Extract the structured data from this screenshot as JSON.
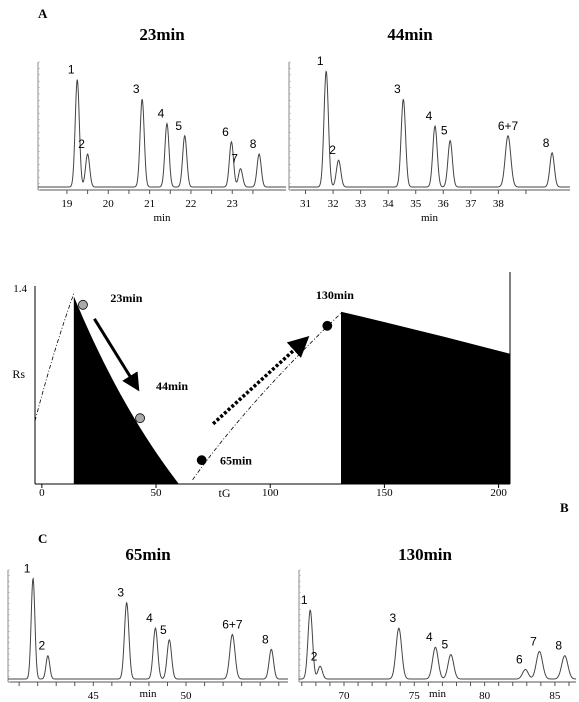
{
  "panels": {
    "A": "A",
    "B": "B",
    "C": "C"
  },
  "chart_data": [
    {
      "type": "line",
      "id": "chrom-23",
      "title": "23min",
      "xlabel": "min",
      "xlim": [
        18.3,
        24.3
      ],
      "xticks": [
        19,
        19.5,
        20,
        20.5,
        21,
        21.5,
        22,
        22.5,
        23,
        23.5
      ],
      "xtick_labels": [
        "19",
        "",
        "20",
        "",
        "21",
        "",
        "22",
        "",
        "23",
        ""
      ],
      "peaks": [
        {
          "label": "1",
          "x": 19.25,
          "height": 0.88,
          "width": 0.05
        },
        {
          "label": "2",
          "x": 19.5,
          "height": 0.27,
          "width": 0.05
        },
        {
          "label": "3",
          "x": 20.82,
          "height": 0.72,
          "width": 0.05
        },
        {
          "label": "4",
          "x": 21.42,
          "height": 0.52,
          "width": 0.05
        },
        {
          "label": "5",
          "x": 21.85,
          "height": 0.42,
          "width": 0.05
        },
        {
          "label": "6",
          "x": 22.98,
          "height": 0.37,
          "width": 0.05
        },
        {
          "label": "7",
          "x": 23.2,
          "height": 0.15,
          "width": 0.05
        },
        {
          "label": "8",
          "x": 23.65,
          "height": 0.27,
          "width": 0.05
        }
      ]
    },
    {
      "type": "line",
      "id": "chrom-44",
      "title": "44min",
      "xlabel": "min",
      "xlim": [
        30.4,
        40.6
      ],
      "xticks": [
        31,
        32,
        33,
        34,
        35,
        36,
        37,
        38,
        39
      ],
      "xtick_labels": [
        "31",
        "32",
        "33",
        "34",
        "35",
        "36",
        "37",
        "38",
        ""
      ],
      "peaks": [
        {
          "label": "1",
          "x": 31.75,
          "height": 0.95,
          "width": 0.08
        },
        {
          "label": "2",
          "x": 32.2,
          "height": 0.22,
          "width": 0.08
        },
        {
          "label": "3",
          "x": 34.55,
          "height": 0.72,
          "width": 0.08
        },
        {
          "label": "4",
          "x": 35.7,
          "height": 0.5,
          "width": 0.08
        },
        {
          "label": "5",
          "x": 36.25,
          "height": 0.38,
          "width": 0.08
        },
        {
          "label": "6+7",
          "x": 38.35,
          "height": 0.42,
          "width": 0.1
        },
        {
          "label": "8",
          "x": 39.95,
          "height": 0.28,
          "width": 0.08
        }
      ]
    },
    {
      "type": "area",
      "id": "resolution-map",
      "ylabel": "Rs",
      "xlabel": "tG",
      "xlim": [
        -3,
        205
      ],
      "ylim": [
        0,
        1.4
      ],
      "yticks": [
        {
          "value": 1.4,
          "label": "1.4"
        }
      ],
      "xticks": [
        0,
        50,
        100,
        150,
        200
      ],
      "xtick_labels": [
        "0",
        "50",
        "100",
        "150",
        "200"
      ],
      "regions": [
        {
          "name": "left-region",
          "points": [
            [
              14,
              0
            ],
            [
              14,
              1.34
            ],
            [
              60,
              0
            ]
          ]
        },
        {
          "name": "right-region",
          "points": [
            [
              131,
              0
            ],
            [
              131,
              1.23
            ],
            [
              205,
              0.93
            ],
            [
              205,
              0
            ]
          ]
        }
      ],
      "dash_curves": [
        {
          "name": "left-curve",
          "points": [
            [
              -3,
              0.45
            ],
            [
              5,
              0.95
            ],
            [
              14,
              1.36
            ]
          ]
        },
        {
          "name": "middle-curve",
          "points": [
            [
              66,
              0.03
            ],
            [
              90,
              0.58
            ],
            [
              131,
              1.22
            ]
          ]
        }
      ],
      "markers": [
        {
          "x": 18,
          "y": 1.28,
          "fill": "gray"
        },
        {
          "x": 43,
          "y": 0.47,
          "fill": "gray"
        },
        {
          "x": 70,
          "y": 0.17,
          "fill": "black"
        },
        {
          "x": 125,
          "y": 1.13,
          "fill": "black"
        }
      ],
      "annotations": [
        {
          "text": "23min",
          "x": 30,
          "y": 1.3
        },
        {
          "text": "44min",
          "x": 50,
          "y": 0.67
        },
        {
          "text": "65min",
          "x": 78,
          "y": 0.14
        },
        {
          "text": "130min",
          "x": 120,
          "y": 1.32
        }
      ],
      "arrows": [
        {
          "name": "solid-arrow",
          "from": [
            23,
            1.18
          ],
          "to": [
            42,
            0.68
          ],
          "style": "solid"
        },
        {
          "name": "dotted-arrow",
          "from": [
            75,
            0.43
          ],
          "to": [
            116,
            1.04
          ],
          "style": "dotted"
        }
      ]
    },
    {
      "type": "line",
      "id": "chrom-65",
      "title": "65min",
      "xlabel": "min",
      "xlim": [
        40.4,
        55.5
      ],
      "xticks": [
        41,
        42,
        43,
        44,
        45,
        46,
        47,
        48,
        49,
        50,
        51,
        52,
        53,
        54,
        55
      ],
      "xtick_labels": [
        "",
        "",
        "",
        "",
        "45",
        "",
        "",
        "",
        "",
        "50",
        "",
        "",
        "",
        "",
        ""
      ],
      "peaks": [
        {
          "label": "1",
          "x": 41.75,
          "height": 0.95,
          "width": 0.1
        },
        {
          "label": "2",
          "x": 42.55,
          "height": 0.22,
          "width": 0.1
        },
        {
          "label": "3",
          "x": 46.8,
          "height": 0.72,
          "width": 0.12
        },
        {
          "label": "4",
          "x": 48.35,
          "height": 0.48,
          "width": 0.12
        },
        {
          "label": "5",
          "x": 49.1,
          "height": 0.37,
          "width": 0.12
        },
        {
          "label": "6+7",
          "x": 52.5,
          "height": 0.42,
          "width": 0.14
        },
        {
          "label": "8",
          "x": 54.6,
          "height": 0.28,
          "width": 0.12
        }
      ]
    },
    {
      "type": "line",
      "id": "chrom-130",
      "title": "130min",
      "xlabel": "min",
      "xlim": [
        66.8,
        86.5
      ],
      "xticks": [
        67,
        68,
        69,
        70,
        71,
        72,
        73,
        74,
        75,
        76,
        77,
        78,
        79,
        80,
        81,
        82,
        83,
        84,
        85,
        86
      ],
      "xtick_labels": [
        "",
        "",
        "",
        "70",
        "",
        "",
        "",
        "",
        "75",
        "",
        "",
        "",
        "",
        "80",
        "",
        "",
        "",
        "",
        "85",
        ""
      ],
      "peaks": [
        {
          "label": "1",
          "x": 67.6,
          "height": 0.65,
          "width": 0.16
        },
        {
          "label": "2",
          "x": 68.3,
          "height": 0.12,
          "width": 0.16
        },
        {
          "label": "3",
          "x": 73.9,
          "height": 0.48,
          "width": 0.2
        },
        {
          "label": "4",
          "x": 76.5,
          "height": 0.3,
          "width": 0.2
        },
        {
          "label": "5",
          "x": 77.6,
          "height": 0.23,
          "width": 0.2
        },
        {
          "label": "6",
          "x": 82.9,
          "height": 0.09,
          "width": 0.2
        },
        {
          "label": "7",
          "x": 83.9,
          "height": 0.26,
          "width": 0.22
        },
        {
          "label": "8",
          "x": 85.7,
          "height": 0.22,
          "width": 0.22
        }
      ]
    }
  ]
}
